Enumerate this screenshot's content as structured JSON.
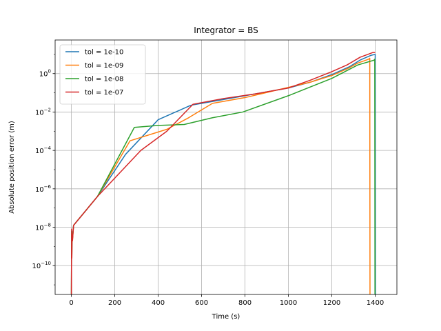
{
  "chart_data": {
    "type": "line",
    "title": "Integrator = BS",
    "xlabel": "Time (s)",
    "ylabel": "Absolute position error (m)",
    "xlim": [
      -75,
      1500
    ],
    "ylim_log10": [
      -11.5,
      1.75
    ],
    "y_scale": "log",
    "x_ticks": [
      0,
      200,
      400,
      600,
      800,
      1000,
      1200,
      1400
    ],
    "x_tick_labels": [
      "0",
      "200",
      "400",
      "600",
      "800",
      "1000",
      "1200",
      "1400"
    ],
    "y_ticks_log10": [
      -10,
      -8,
      -6,
      -4,
      -2,
      0
    ],
    "y_tick_labels": [
      "10^-10",
      "10^-8",
      "10^-6",
      "10^-4",
      "10^-2",
      "10^0"
    ],
    "grid": true,
    "legend_position": "top-left",
    "series": [
      {
        "name": "tol = 1e-10",
        "color": "#1f77b4",
        "x": [
          0,
          1,
          2,
          3,
          5,
          10,
          120,
          250,
          400,
          550,
          700,
          850,
          1000,
          1100,
          1200,
          1280,
          1330,
          1380,
          1400,
          1401
        ],
        "y_log10": [
          -11.5,
          -8.2,
          -9.5,
          -8.4,
          -8.6,
          -7.9,
          -6.4,
          -4.2,
          -2.4,
          -1.65,
          -1.35,
          -1.05,
          -0.75,
          -0.45,
          -0.05,
          0.35,
          0.7,
          0.95,
          1.0,
          -11.5
        ]
      },
      {
        "name": "tol = 1e-09",
        "color": "#ff7f0e",
        "x": [
          0,
          1,
          2,
          3,
          5,
          10,
          120,
          270,
          440,
          540,
          650,
          800,
          950,
          1100,
          1200,
          1280,
          1320,
          1370,
          1375,
          1376
        ],
        "y_log10": [
          -11.5,
          -8.3,
          -9.6,
          -8.5,
          -8.7,
          -7.9,
          -6.4,
          -3.5,
          -2.9,
          -2.3,
          -1.55,
          -1.25,
          -0.85,
          -0.45,
          -0.1,
          0.3,
          0.55,
          0.75,
          0.8,
          -11.5
        ]
      },
      {
        "name": "tol = 1e-08",
        "color": "#2ca02c",
        "x": [
          0,
          1,
          2,
          3,
          5,
          10,
          120,
          290,
          400,
          520,
          650,
          790,
          1000,
          1200,
          1320,
          1395,
          1398,
          1399
        ],
        "y_log10": [
          -11.5,
          -8.2,
          -9.6,
          -8.4,
          -8.6,
          -7.9,
          -6.4,
          -2.8,
          -2.7,
          -2.65,
          -2.3,
          -2.0,
          -1.15,
          -0.25,
          0.45,
          0.7,
          0.75,
          -11.5
        ]
      },
      {
        "name": "tol = 1e-07",
        "color": "#d62728",
        "x": [
          0,
          1,
          2,
          3,
          5,
          10,
          120,
          320,
          440,
          560,
          700,
          850,
          1000,
          1100,
          1200,
          1270,
          1330,
          1390,
          1400
        ],
        "y_log10": [
          -11.5,
          -8.1,
          -9.6,
          -8.4,
          -8.7,
          -7.9,
          -6.4,
          -4.0,
          -3.0,
          -1.6,
          -1.3,
          -1.05,
          -0.75,
          -0.35,
          0.1,
          0.45,
          0.85,
          1.1,
          1.1
        ]
      }
    ]
  }
}
